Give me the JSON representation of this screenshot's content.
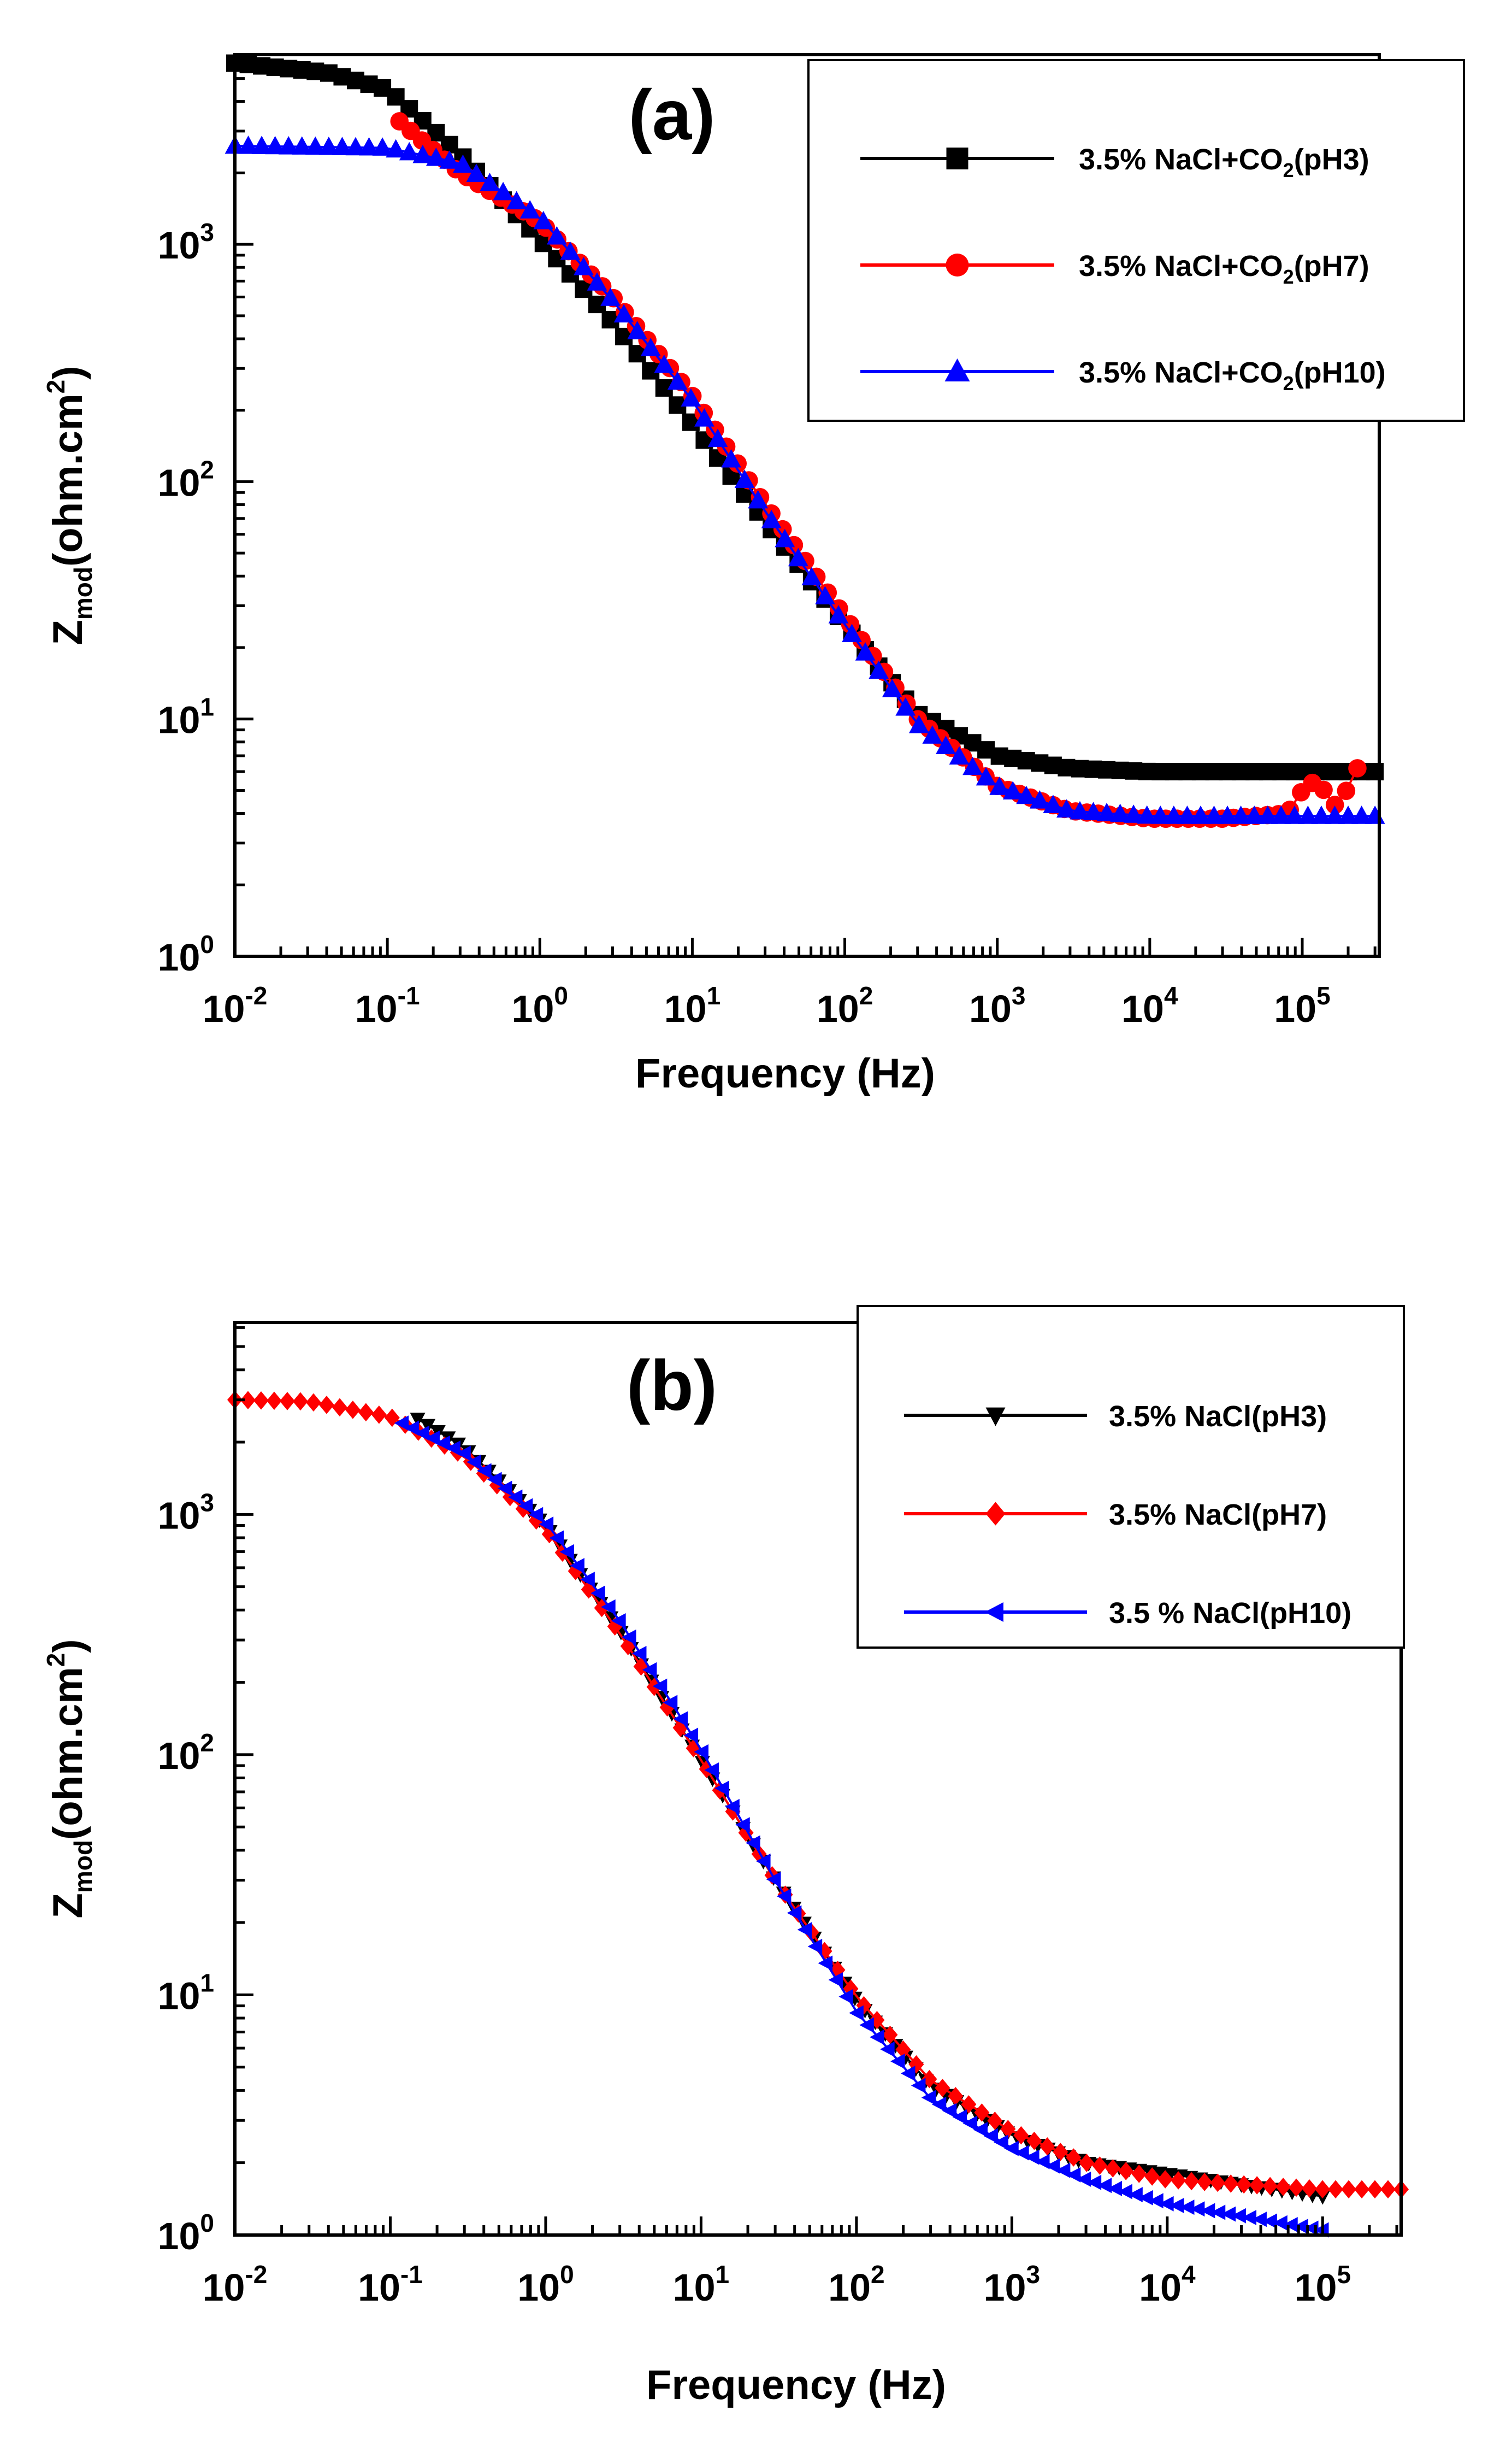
{
  "chart_data": [
    {
      "type": "scatter",
      "panel_label": "(a)",
      "title": "(a)",
      "xlabel": "Frequency (Hz)",
      "ylabel": {
        "base": "Z",
        "sub": "mod",
        "main": "(ohm.cm",
        "sup": "2",
        "close": ")"
      },
      "xscale": "log",
      "yscale": "log",
      "xlim": [
        0.01,
        320000
      ],
      "ylim": [
        1,
        6300
      ],
      "x_ticks": [
        {
          "value": 0.01,
          "base": "10",
          "exp": "-2"
        },
        {
          "value": 0.1,
          "base": "10",
          "exp": "-1"
        },
        {
          "value": 1,
          "base": "10",
          "exp": "0"
        },
        {
          "value": 10,
          "base": "10",
          "exp": "1"
        },
        {
          "value": 100,
          "base": "10",
          "exp": "2"
        },
        {
          "value": 1000,
          "base": "10",
          "exp": "3"
        },
        {
          "value": 10000,
          "base": "10",
          "exp": "4"
        },
        {
          "value": 100000,
          "base": "10",
          "exp": "5"
        }
      ],
      "y_ticks": [
        {
          "value": 1,
          "base": "10",
          "exp": "0"
        },
        {
          "value": 10,
          "base": "10",
          "exp": "1"
        },
        {
          "value": 100,
          "base": "10",
          "exp": "2"
        },
        {
          "value": 1000,
          "base": "10",
          "exp": "3"
        }
      ],
      "legend_position": "top-right",
      "series": [
        {
          "name": "3.5% NaCl+CO2(pH3)",
          "legend": {
            "pre": "3.5% NaCl+CO",
            "sub": "2",
            "post": "(pH3)"
          },
          "color": "#000000",
          "marker": "square",
          "points": [
            [
              0.01,
              5800
            ],
            [
              0.04,
              5300
            ],
            [
              0.1,
              4500
            ],
            [
              0.3,
              2400
            ],
            [
              1,
              1050
            ],
            [
              3,
              470
            ],
            [
              10,
              175
            ],
            [
              30,
              68
            ],
            [
              100,
              25
            ],
            [
              300,
              10.5
            ],
            [
              1000,
              7.0
            ],
            [
              3000,
              6.2
            ],
            [
              10000,
              6.0
            ],
            [
              100000,
              6.0
            ],
            [
              300000,
              6.0
            ]
          ]
        },
        {
          "name": "3.5% NaCl+CO2(pH7)",
          "legend": {
            "pre": " 3.5% NaCl+CO",
            "sub": "2",
            "post": "(pH7)"
          },
          "color": "#ff0000",
          "marker": "circle",
          "points": [
            [
              0.12,
              3300
            ],
            [
              0.3,
              2000
            ],
            [
              1,
              1250
            ],
            [
              3,
              600
            ],
            [
              10,
              230
            ],
            [
              30,
              80
            ],
            [
              100,
              27
            ],
            [
              300,
              10
            ],
            [
              1000,
              5.2
            ],
            [
              3000,
              4.1
            ],
            [
              10000,
              3.8
            ],
            [
              30000,
              3.8
            ],
            [
              80000,
              4.0
            ],
            [
              110000,
              5.5
            ],
            [
              140000,
              5.0
            ],
            [
              170000,
              4.2
            ],
            [
              230000,
              6.2
            ]
          ]
        },
        {
          "name": "3.5% NaCl+CO2(pH10)",
          "legend": {
            "pre": "3.5% NaCl+CO",
            "sub": "2",
            "post": "(pH10)"
          },
          "color": "#0000ff",
          "marker": "triangle-up",
          "points": [
            [
              0.01,
              2600
            ],
            [
              0.1,
              2550
            ],
            [
              0.3,
              2200
            ],
            [
              1,
              1300
            ],
            [
              3,
              580
            ],
            [
              10,
              220
            ],
            [
              30,
              75
            ],
            [
              100,
              25
            ],
            [
              300,
              9.5
            ],
            [
              1000,
              5.2
            ],
            [
              3000,
              4.1
            ],
            [
              10000,
              3.9
            ],
            [
              100000,
              3.9
            ],
            [
              300000,
              3.9
            ]
          ]
        }
      ]
    },
    {
      "type": "scatter",
      "panel_label": "(b)",
      "title": "(b)",
      "xlabel": "Frequency (Hz)",
      "ylabel": {
        "base": "Z",
        "sub": "mod",
        "main": "(ohm.cm",
        "sup": "2",
        "close": ")"
      },
      "xscale": "log",
      "yscale": "log",
      "xlim": [
        0.01,
        320000
      ],
      "ylim": [
        1,
        6300
      ],
      "x_ticks": [
        {
          "value": 0.01,
          "base": "10",
          "exp": "-2"
        },
        {
          "value": 0.1,
          "base": "10",
          "exp": "-1"
        },
        {
          "value": 1,
          "base": "10",
          "exp": "0"
        },
        {
          "value": 10,
          "base": "10",
          "exp": "1"
        },
        {
          "value": 100,
          "base": "10",
          "exp": "2"
        },
        {
          "value": 1000,
          "base": "10",
          "exp": "3"
        },
        {
          "value": 10000,
          "base": "10",
          "exp": "4"
        },
        {
          "value": 100000,
          "base": "10",
          "exp": "5"
        }
      ],
      "y_ticks": [
        {
          "value": 1,
          "base": "10",
          "exp": "0"
        },
        {
          "value": 10,
          "base": "10",
          "exp": "1"
        },
        {
          "value": 100,
          "base": "10",
          "exp": "2"
        },
        {
          "value": 1000,
          "base": "10",
          "exp": "3"
        }
      ],
      "legend_position": "top-right",
      "series": [
        {
          "name": "3.5% NaCl(pH3)",
          "legend": {
            "pre": "3.5% NaCl(pH3)",
            "sub": "",
            "post": ""
          },
          "color": "#000000",
          "marker": "triangle-down",
          "points": [
            [
              0.15,
              2500
            ],
            [
              0.3,
              1900
            ],
            [
              1,
              900
            ],
            [
              3,
              330
            ],
            [
              10,
              95
            ],
            [
              30,
              30
            ],
            [
              100,
              9.5
            ],
            [
              300,
              4.2
            ],
            [
              1000,
              2.6
            ],
            [
              3000,
              2.0
            ],
            [
              10000,
              1.8
            ],
            [
              100000,
              1.45
            ]
          ]
        },
        {
          "name": "3.5% NaCl(pH7)",
          "legend": {
            "pre": "3.5% NaCl(pH7)",
            "sub": "",
            "post": ""
          },
          "color": "#ff0000",
          "marker": "diamond",
          "points": [
            [
              0.01,
              3000
            ],
            [
              0.03,
              2950
            ],
            [
              0.1,
              2550
            ],
            [
              0.3,
              1750
            ],
            [
              1,
              870
            ],
            [
              3,
              320
            ],
            [
              10,
              95
            ],
            [
              30,
              30
            ],
            [
              100,
              9.8
            ],
            [
              300,
              4.4
            ],
            [
              1000,
              2.7
            ],
            [
              3000,
              2.0
            ],
            [
              10000,
              1.7
            ],
            [
              100000,
              1.55
            ],
            [
              320000,
              1.55
            ]
          ]
        },
        {
          "name": "3.5 % NaCl(pH10)",
          "legend": {
            "pre": "3.5 % NaCl(pH10)",
            "sub": "",
            "post": ""
          },
          "color": "#0000ff",
          "marker": "triangle-left",
          "points": [
            [
              0.12,
              2400
            ],
            [
              0.3,
              1800
            ],
            [
              1,
              930
            ],
            [
              3,
              360
            ],
            [
              10,
              105
            ],
            [
              30,
              30
            ],
            [
              100,
              8.5
            ],
            [
              300,
              3.7
            ],
            [
              1000,
              2.3
            ],
            [
              3000,
              1.7
            ],
            [
              10000,
              1.35
            ],
            [
              30000,
              1.2
            ],
            [
              100000,
              1.05
            ]
          ]
        }
      ]
    }
  ]
}
